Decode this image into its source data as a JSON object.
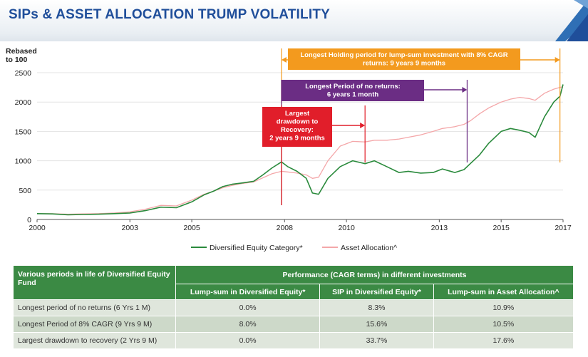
{
  "header": {
    "title": "SIPs & ASSET ALLOCATION TRUMP VOLATILITY"
  },
  "chart_data": {
    "type": "line",
    "ylabel": "Rebased\nto 100",
    "y_ticks": [
      "2500",
      "2000",
      "1500",
      "1000",
      "500",
      "0"
    ],
    "ylim": [
      0,
      2500
    ],
    "x_ticks": [
      "2000",
      "2003",
      "2005",
      "2008",
      "2010",
      "2013",
      "2015",
      "2017"
    ],
    "xlim": [
      2000,
      2017
    ],
    "grid": "horizontal",
    "legend_position": "bottom",
    "series": [
      {
        "name": "Diversified Equity Category*",
        "color": "#2a8a3c",
        "x": [
          2000,
          2000.5,
          2001,
          2001.5,
          2002,
          2002.5,
          2003,
          2003.5,
          2004,
          2004.5,
          2005,
          2005.4,
          2005.7,
          2006,
          2006.3,
          2006.6,
          2007,
          2007.3,
          2007.6,
          2007.9,
          2008.1,
          2008.4,
          2008.7,
          2008.9,
          2009.1,
          2009.4,
          2009.8,
          2010.2,
          2010.6,
          2010.9,
          2011.3,
          2011.7,
          2012,
          2012.4,
          2012.8,
          2013.1,
          2013.5,
          2013.8,
          2014,
          2014.3,
          2014.6,
          2015,
          2015.3,
          2015.6,
          2015.9,
          2016.1,
          2016.4,
          2016.7,
          2016.9,
          2017
        ],
        "y": [
          100,
          95,
          80,
          85,
          90,
          100,
          110,
          150,
          210,
          200,
          300,
          420,
          480,
          560,
          600,
          620,
          650,
          760,
          880,
          980,
          900,
          820,
          700,
          450,
          430,
          700,
          900,
          1000,
          950,
          1000,
          900,
          800,
          820,
          790,
          800,
          860,
          800,
          850,
          950,
          1100,
          1300,
          1500,
          1550,
          1520,
          1480,
          1400,
          1750,
          2000,
          2100,
          2300
        ]
      },
      {
        "name": "Asset Allocation^",
        "color": "#f4a7a9",
        "x": [
          2000,
          2000.5,
          2001,
          2001.5,
          2002,
          2002.5,
          2003,
          2003.5,
          2004,
          2004.5,
          2005,
          2005.4,
          2005.7,
          2006,
          2006.3,
          2006.6,
          2007,
          2007.3,
          2007.6,
          2007.9,
          2008.1,
          2008.4,
          2008.7,
          2008.9,
          2009.1,
          2009.4,
          2009.8,
          2010.2,
          2010.6,
          2010.9,
          2011.3,
          2011.7,
          2012,
          2012.4,
          2012.8,
          2013.1,
          2013.5,
          2013.8,
          2014,
          2014.3,
          2014.6,
          2015,
          2015.3,
          2015.6,
          2015.9,
          2016.1,
          2016.4,
          2016.7,
          2016.9,
          2017
        ],
        "y": [
          100,
          98,
          90,
          95,
          100,
          110,
          130,
          175,
          240,
          230,
          330,
          430,
          480,
          540,
          580,
          610,
          640,
          710,
          780,
          820,
          810,
          790,
          760,
          700,
          720,
          1000,
          1250,
          1330,
          1320,
          1350,
          1350,
          1370,
          1400,
          1440,
          1500,
          1550,
          1580,
          1620,
          1680,
          1800,
          1900,
          2000,
          2050,
          2080,
          2060,
          2030,
          2150,
          2220,
          2250,
          2260
        ]
      }
    ],
    "annotations": [
      {
        "label": "Longest Holding period for lump-sum investment with 8% CAGR returns: 9 years 9 months",
        "color": "#f39a1e",
        "x_start": 2007.9,
        "x_end": 2016.9
      },
      {
        "label": "Longest Period of no returns: 6 years 1 month",
        "color": "#6b2d84",
        "x_start": 2007.9,
        "x_end": 2013.9
      },
      {
        "label": "Largest drawdown to Recovery: 2 years 9 months",
        "color": "#e11e2a",
        "x_start": 2007.9,
        "x_end": 2010.6
      }
    ]
  },
  "table": {
    "header_col1": "Various periods in life of Diversified Equity Fund",
    "header_group": "Performance (CAGR terms) in different investments",
    "sub_headers": [
      "Lump-sum in Diversified Equity*",
      "SIP in Diversified Equity*",
      "Lump-sum in Asset Allocation^"
    ],
    "rows": [
      {
        "label": "Longest period of no returns (6 Yrs 1 M)",
        "values": [
          "0.0%",
          "8.3%",
          "10.9%"
        ]
      },
      {
        "label": "Longest Period of 8% CAGR (9 Yrs 9 M)",
        "values": [
          "8.0%",
          "15.6%",
          "10.5%"
        ]
      },
      {
        "label": "Largest drawdown to recovery (2 Yrs 9 M)",
        "values": [
          "0.0%",
          "33.7%",
          "17.6%"
        ]
      }
    ]
  }
}
